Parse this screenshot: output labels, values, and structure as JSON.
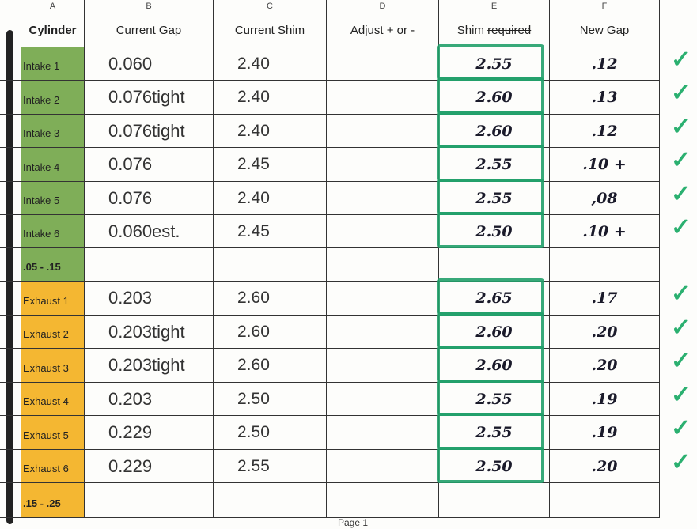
{
  "column_letters": [
    "A",
    "B",
    "C",
    "D",
    "E",
    "F"
  ],
  "headers": {
    "cylinder": "Cylinder",
    "current_gap": "Current Gap",
    "current_shim": "Current Shim",
    "adjust": "Adjust +  or -",
    "shim": "Shim",
    "shim_struck": "required",
    "new_gap": "New Gap"
  },
  "rows": [
    {
      "cylinder": "Intake 1",
      "gap": "0.060",
      "shim": "2.40",
      "adjust": "",
      "shim_required": "2.55",
      "new_gap": ".12",
      "type": "intake"
    },
    {
      "cylinder": "Intake 2",
      "gap": "0.076tight",
      "shim": "2.40",
      "adjust": "",
      "shim_required": "2.60",
      "new_gap": ".13",
      "type": "intake"
    },
    {
      "cylinder": "Intake 3",
      "gap": "0.076tight",
      "shim": "2.40",
      "adjust": "",
      "shim_required": "2.60",
      "new_gap": ".12",
      "type": "intake"
    },
    {
      "cylinder": "Intake 4",
      "gap": "0.076",
      "shim": "2.45",
      "adjust": "",
      "shim_required": "2.55",
      "new_gap": ".10  +",
      "type": "intake"
    },
    {
      "cylinder": "Intake 5",
      "gap": "0.076",
      "shim": "2.40",
      "adjust": "",
      "shim_required": "2.55",
      "new_gap": ",08",
      "type": "intake"
    },
    {
      "cylinder": "Intake 6",
      "gap": "0.060est.",
      "shim": "2.45",
      "adjust": "",
      "shim_required": "2.50",
      "new_gap": ".10  +",
      "type": "intake"
    },
    {
      "cylinder": ".05 - .15",
      "gap": "",
      "shim": "",
      "adjust": "",
      "shim_required": "",
      "new_gap": "",
      "type": "intake-range"
    },
    {
      "cylinder": "Exhaust 1",
      "gap": "0.203",
      "shim": "2.60",
      "adjust": "",
      "shim_required": "2.65",
      "new_gap": ".17",
      "type": "exhaust"
    },
    {
      "cylinder": "Exhaust 2",
      "gap": "0.203tight",
      "shim": "2.60",
      "adjust": "",
      "shim_required": "2.60",
      "new_gap": ".20",
      "type": "exhaust"
    },
    {
      "cylinder": "Exhaust 3",
      "gap": "0.203tight",
      "shim": "2.60",
      "adjust": "",
      "shim_required": "2.60",
      "new_gap": ".20",
      "type": "exhaust"
    },
    {
      "cylinder": "Exhaust 4",
      "gap": "0.203",
      "shim": "2.50",
      "adjust": "",
      "shim_required": "2.55",
      "new_gap": ".19",
      "type": "exhaust"
    },
    {
      "cylinder": "Exhaust 5",
      "gap": "0.229",
      "shim": "2.50",
      "adjust": "",
      "shim_required": "2.55",
      "new_gap": ".19",
      "type": "exhaust"
    },
    {
      "cylinder": "Exhaust 6",
      "gap": "0.229",
      "shim": "2.55",
      "adjust": "",
      "shim_required": "2.50",
      "new_gap": ".20",
      "type": "exhaust"
    },
    {
      "cylinder": ".15 - .25",
      "gap": "",
      "shim": "",
      "adjust": "",
      "shim_required": "",
      "new_gap": "",
      "type": "exhaust-range"
    }
  ],
  "colors": {
    "intake": "#7fae58",
    "exhaust": "#f4b732",
    "highlight": "#22a06a",
    "check": "#2bb070"
  },
  "footer": "Page 1"
}
